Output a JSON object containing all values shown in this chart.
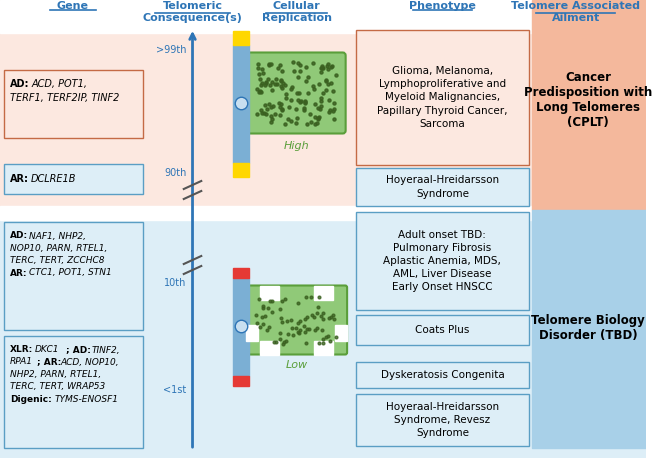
{
  "bg_top": "#fce8e0",
  "bg_bottom": "#ddeef7",
  "header_color": "#2e75b6",
  "axis_color": "#2e75b6",
  "telomere_yellow": "#FFD700",
  "telomere_blue": "#7bafd4",
  "telomere_red": "#e53935",
  "cplt_bg": "#f4b89c",
  "tbd_bg": "#a8d0e8",
  "label_99": ">99th",
  "label_90": "90th",
  "label_10": "10th",
  "label_1": "<1st",
  "phenotype_top": "Glioma, Melanoma,\nLymphoproliferative and\nMyeloid Malignancies,\nPapillary Thyroid Cancer,\nSarcoma",
  "phenotype_hh1": "Hoyeraal-Hreidarsson\nSyndrome",
  "phenotype_adult": "Adult onset TBD:\nPulmonary Fibrosis\nAplastic Anemia, MDS,\nAML, Liver Disease\nEarly Onset HNSCC",
  "phenotype_coats": "Coats Plus",
  "phenotype_dk": "Dyskeratosis Congenita",
  "phenotype_hh2": "Hoyeraal-Hreidarsson\nSyndrome, Revesz\nSyndrome",
  "cplt_label": "Cancer\nPredisposition with\nLong Telomeres\n(CPLT)",
  "tbd_label": "Telomere Biology\nDisorder (TBD)",
  "high_label": "High",
  "low_label": "Low",
  "cell_green": "#90c978",
  "cell_green_dark": "#5a9e3a",
  "cell_spot": "#3a6020",
  "gene_ec_top": "#c46a45",
  "gene_ec_bottom": "#5a9ec4"
}
